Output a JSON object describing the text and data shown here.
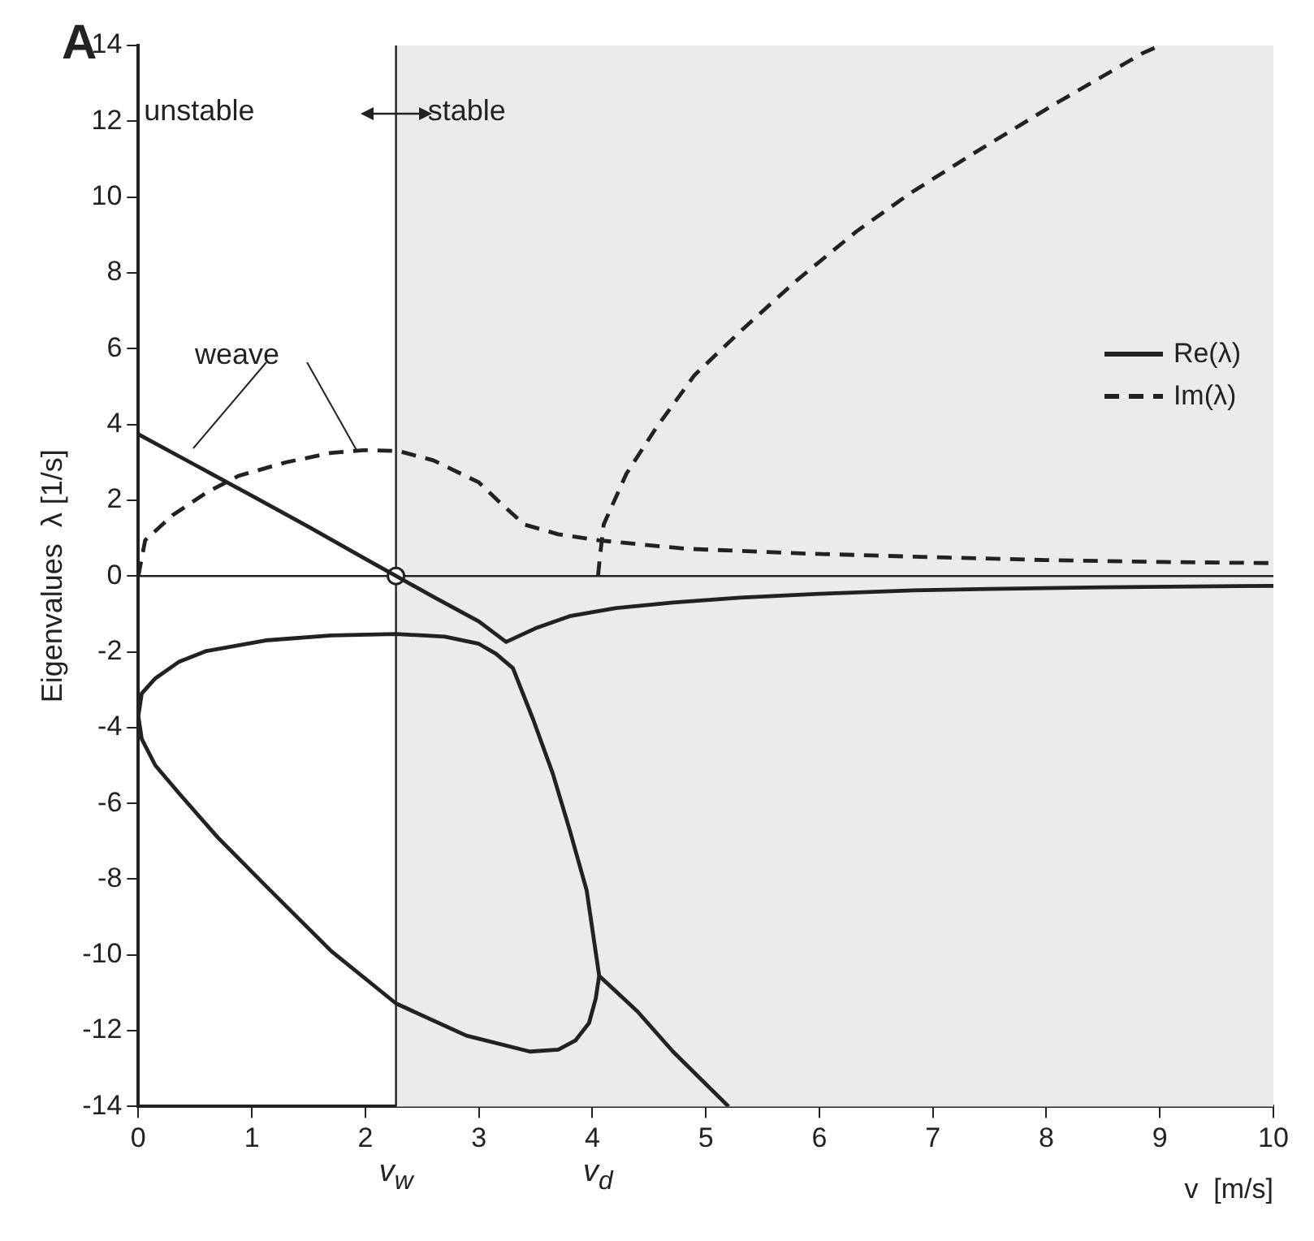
{
  "chart_data": {
    "type": "line",
    "title": "A",
    "xlabel": "v  [m/s]",
    "ylabel": "Eigenvalues  λ [1/s]",
    "xlim": [
      0,
      10
    ],
    "xticks": [
      0,
      1,
      2,
      3,
      4,
      5,
      6,
      7,
      8,
      9,
      10
    ],
    "ylim": [
      -14,
      14
    ],
    "yticks": [
      -14,
      -12,
      -10,
      -8,
      -6,
      -4,
      -2,
      0,
      2,
      4,
      6,
      8,
      10,
      12,
      14
    ],
    "grid": false,
    "legend": "top right",
    "marker": "none",
    "series": [
      {
        "name": "Re(λ)",
        "color": "#222222",
        "line_style": "solid",
        "x": [
          0,
          0.5,
          1,
          1.5,
          2,
          2.27,
          2.6,
          3,
          3.24,
          3.5,
          3.8,
          4.2,
          4.71,
          5.3,
          6,
          6.83,
          7.5,
          8.5,
          10
        ],
        "values": [
          3.74,
          2.93,
          2.12,
          1.3,
          0.45,
          0,
          -0.55,
          -1.2,
          -1.74,
          -1.38,
          -1.06,
          -0.85,
          -0.7,
          -0.57,
          -0.47,
          -0.38,
          -0.34,
          -0.3,
          -0.26
        ]
      },
      {
        "color": "#222222",
        "line_style": "solid",
        "x": [
          4.06,
          3.95,
          3.8,
          3.65,
          3.48,
          3.3,
          3.15,
          3.0,
          2.7,
          2.27,
          1.7,
          1.12,
          0.6,
          0.36,
          0.15,
          0.03,
          0,
          0.03,
          0.15,
          0.36,
          0.7,
          1.12,
          1.7,
          2.27,
          2.89,
          3.45,
          3.7,
          3.85,
          3.97,
          4.03,
          4.06,
          4.4,
          4.71,
          5.2
        ],
        "values": [
          -10.55,
          -8.3,
          -6.7,
          -5.2,
          -3.8,
          -2.43,
          -2.05,
          -1.79,
          -1.6,
          -1.53,
          -1.57,
          -1.7,
          -1.98,
          -2.26,
          -2.7,
          -3.1,
          -3.7,
          -4.3,
          -5.0,
          -5.74,
          -6.9,
          -8.17,
          -9.9,
          -11.28,
          -12.13,
          -12.55,
          -12.5,
          -12.26,
          -11.8,
          -11.15,
          -10.55,
          -11.5,
          -12.55,
          -14
        ]
      },
      {
        "name": "Im(λ)",
        "color": "#222222",
        "line_style": "dashed",
        "x": [
          0,
          0.06,
          0.3,
          0.6,
          0.88,
          1.3,
          1.7,
          1.98,
          2.29,
          2.6,
          3.0,
          3.2,
          3.4,
          3.7,
          4.06,
          4.82,
          5.8,
          6.83,
          8,
          9,
          10
        ],
        "values": [
          0,
          0.94,
          1.6,
          2.2,
          2.64,
          3.0,
          3.25,
          3.32,
          3.3,
          3.05,
          2.47,
          1.9,
          1.36,
          1.1,
          0.94,
          0.72,
          0.6,
          0.51,
          0.42,
          0.37,
          0.34
        ]
      },
      {
        "color": "#222222",
        "line_style": "dashed",
        "x": [
          4.05,
          4.07,
          4.1,
          4.3,
          4.56,
          4.9,
          5.32,
          5.8,
          6.33,
          6.8,
          7.33,
          8.1,
          8.85,
          9.0
        ],
        "values": [
          0,
          0.6,
          1.36,
          2.7,
          3.9,
          5.3,
          6.5,
          7.8,
          9.1,
          10.1,
          11.1,
          12.5,
          13.8,
          14
        ]
      },
      {
        "type": "scatter",
        "color": "#222222",
        "marker": "circle",
        "x": [
          2.27
        ],
        "values": [
          0
        ]
      }
    ],
    "ref_lines": [
      {
        "axis": "x",
        "value": 2.27,
        "label": "v$_{w}$",
        "color": "#222222"
      },
      {
        "axis": "y",
        "value": 0,
        "color": "#222222"
      }
    ],
    "bands": [
      {
        "axis": "x",
        "from": 2.27,
        "to": 10,
        "color": "#ebebeb"
      }
    ],
    "annotations": [
      "unstable",
      "stable",
      {
        "text": "weave",
        "x": 1.93,
        "y": 3.3
      },
      {
        "text": "v$_{d}$",
        "x": 4.05,
        "y": -14
      }
    ]
  }
}
